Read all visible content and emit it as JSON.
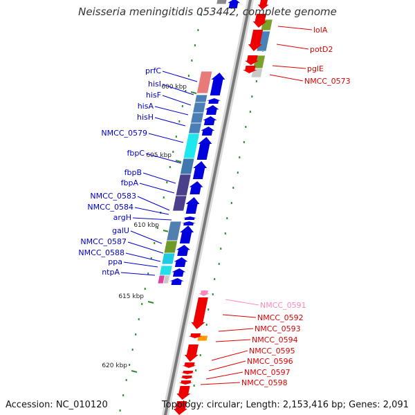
{
  "title": "Neisseria meningitidis 053442, complete genome",
  "footer": {
    "accession": "Accession: NC_010120",
    "topology": "Topology: circular; Length: 2,153,416 bp; Genes: 2,091"
  },
  "scale_ticks": [
    {
      "label": "600 kbp"
    },
    {
      "label": "605 kbp"
    },
    {
      "label": "610 kbp"
    },
    {
      "label": "615 kbp"
    },
    {
      "label": "620 kbp"
    }
  ],
  "genes_left": [
    {
      "name": "prfC",
      "color": "#0000cc"
    },
    {
      "name": "hisI",
      "color": "#0000cc"
    },
    {
      "name": "hisF",
      "color": "#0000cc"
    },
    {
      "name": "hisA",
      "color": "#0000cc"
    },
    {
      "name": "hisH",
      "color": "#0000cc"
    },
    {
      "name": "NMCC_0579",
      "color": "#0000cc"
    },
    {
      "name": "fbpC",
      "color": "#0000cc"
    },
    {
      "name": "fbpB",
      "color": "#0000cc"
    },
    {
      "name": "fbpA",
      "color": "#0000cc"
    },
    {
      "name": "NMCC_0583",
      "color": "#0000cc"
    },
    {
      "name": "NMCC_0584",
      "color": "#0000cc"
    },
    {
      "name": "argH",
      "color": "#0000cc"
    },
    {
      "name": "galU",
      "color": "#0000cc"
    },
    {
      "name": "NMCC_0587",
      "color": "#0000cc"
    },
    {
      "name": "NMCC_0588",
      "color": "#0000cc"
    },
    {
      "name": "ppa",
      "color": "#0000cc"
    },
    {
      "name": "ntpA",
      "color": "#0000cc"
    }
  ],
  "genes_right": [
    {
      "name": "lolA",
      "color": "#dd0000"
    },
    {
      "name": "potD2",
      "color": "#dd0000"
    },
    {
      "name": "pglE",
      "color": "#dd0000"
    },
    {
      "name": "NMCC_0573",
      "color": "#dd0000"
    },
    {
      "name": "NMCC_0591",
      "color": "#ff88bb"
    },
    {
      "name": "NMCC_0592",
      "color": "#dd0000"
    },
    {
      "name": "NMCC_0593",
      "color": "#dd0000"
    },
    {
      "name": "NMCC_0594",
      "color": "#dd0000"
    },
    {
      "name": "NMCC_0595",
      "color": "#dd0000"
    },
    {
      "name": "NMCC_0596",
      "color": "#dd0000"
    },
    {
      "name": "NMCC_0597",
      "color": "#dd0000"
    },
    {
      "name": "NMCC_0598",
      "color": "#dd0000"
    }
  ]
}
